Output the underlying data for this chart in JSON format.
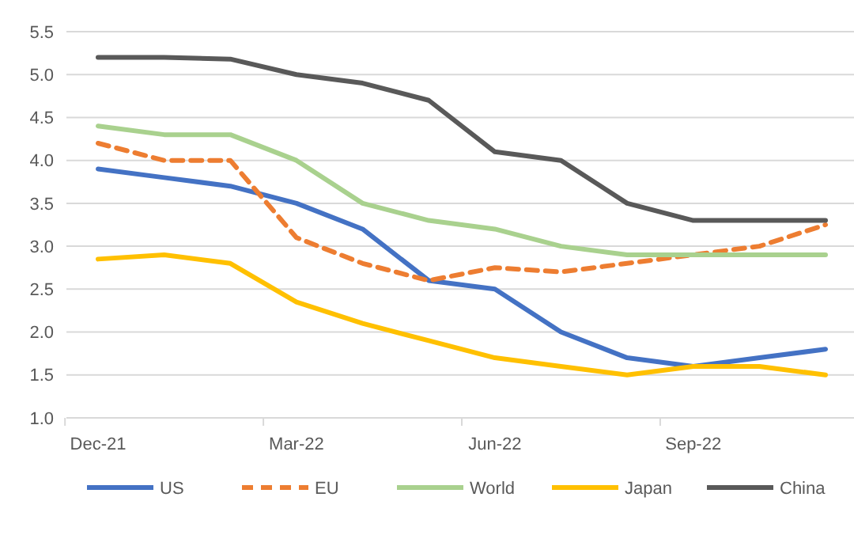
{
  "chart_data": {
    "type": "line",
    "categories": [
      "Dec-21",
      null,
      null,
      "Mar-22",
      null,
      null,
      "Jun-22",
      null,
      null,
      "Sep-22",
      null,
      null
    ],
    "series": [
      {
        "name": "US",
        "color": "#4472c4",
        "values": [
          3.9,
          3.8,
          3.7,
          3.5,
          3.2,
          2.6,
          2.5,
          2.0,
          1.7,
          1.6,
          1.7,
          1.8
        ]
      },
      {
        "name": "EU",
        "color": "#ed7d31",
        "line_style": "dashed",
        "values": [
          4.2,
          4.0,
          4.0,
          3.1,
          2.8,
          2.6,
          2.75,
          2.7,
          2.8,
          2.9,
          3.0,
          3.25
        ]
      },
      {
        "name": "World",
        "color": "#a9d18e",
        "values": [
          4.4,
          4.3,
          4.3,
          4.0,
          3.5,
          3.3,
          3.2,
          3.0,
          2.9,
          2.9,
          2.9,
          2.9
        ]
      },
      {
        "name": "Japan",
        "color": "#ffc000",
        "values": [
          2.85,
          2.9,
          2.8,
          2.35,
          2.1,
          1.9,
          1.7,
          1.6,
          1.5,
          1.6,
          1.6,
          1.5
        ]
      },
      {
        "name": "China",
        "color": "#595959",
        "values": [
          5.2,
          5.2,
          5.18,
          5.0,
          4.9,
          4.7,
          4.1,
          4.0,
          3.5,
          3.3,
          3.3,
          3.3
        ]
      }
    ],
    "ylim": [
      1.0,
      5.5
    ],
    "yticks": [
      {
        "value": 1.0,
        "label": "1.0"
      },
      {
        "value": 1.5,
        "label": "1.5"
      },
      {
        "value": 2.0,
        "label": "2.0"
      },
      {
        "value": 2.5,
        "label": "2.5"
      },
      {
        "value": 3.0,
        "label": "3.0"
      },
      {
        "value": 3.5,
        "label": "3.5"
      },
      {
        "value": 4.0,
        "label": "4.0"
      },
      {
        "value": 4.5,
        "label": "4.5"
      },
      {
        "value": 5.0,
        "label": "5.0"
      },
      {
        "value": 5.5,
        "label": "5.5"
      }
    ],
    "grid": "y",
    "legend": "bottom",
    "line_style": "solid",
    "marker": "none"
  }
}
